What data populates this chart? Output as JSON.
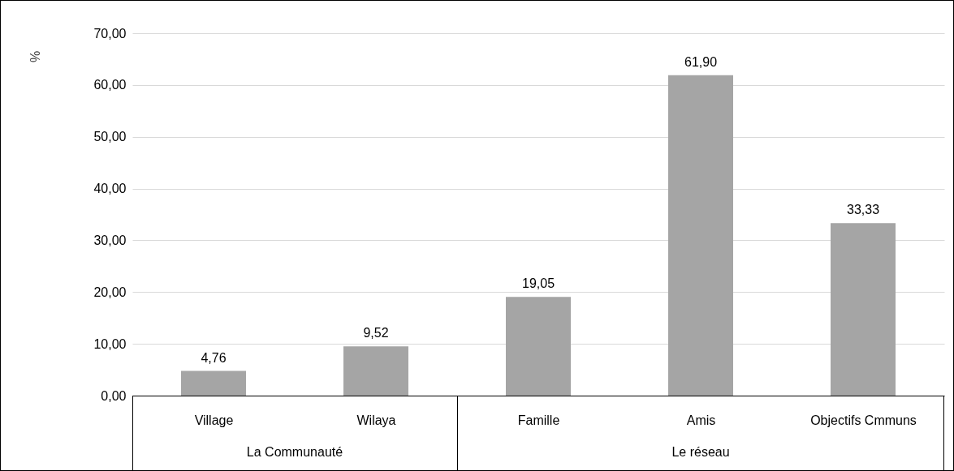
{
  "chart_data": {
    "type": "bar",
    "ylabel": "%",
    "categories": [
      "Village",
      "Wilaya",
      "Famille",
      "Amis",
      "Objectifs Cmmuns"
    ],
    "values": [
      4.76,
      9.52,
      19.05,
      61.9,
      33.33
    ],
    "value_labels": [
      "4,76",
      "9,52",
      "19,05",
      "61,90",
      "33,33"
    ],
    "color": "#a5a5a5",
    "ylim": [
      0,
      70
    ],
    "yticks": [
      {
        "value": 0,
        "label": "0,00"
      },
      {
        "value": 10,
        "label": "10,00"
      },
      {
        "value": 20,
        "label": "20,00"
      },
      {
        "value": 30,
        "label": "30,00"
      },
      {
        "value": 40,
        "label": "40,00"
      },
      {
        "value": 50,
        "label": "50,00"
      },
      {
        "value": 60,
        "label": "60,00"
      },
      {
        "value": 70,
        "label": "70,00"
      }
    ],
    "grid": "y",
    "annotations": [
      "La Communauté",
      "Le réseau"
    ]
  }
}
